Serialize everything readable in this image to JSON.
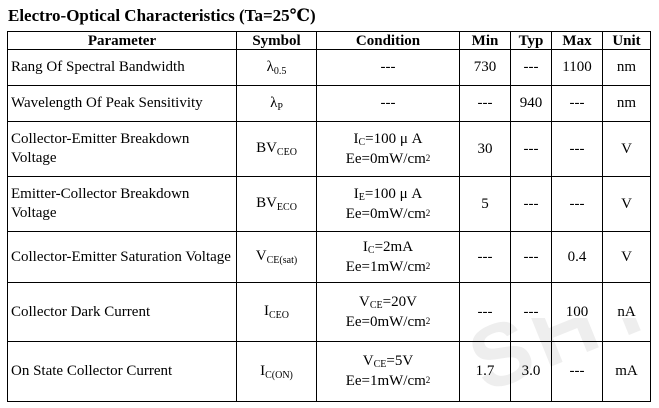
{
  "title": "Electro-Optical Characteristics (Ta=25℃)",
  "watermark": "SHT",
  "headers": {
    "parameter": "Parameter",
    "symbol": "Symbol",
    "condition": "Condition",
    "min": "Min",
    "typ": "Typ",
    "max": "Max",
    "unit": "Unit"
  },
  "rows": [
    {
      "parameter": "Rang Of Spectral Bandwidth",
      "symbol": {
        "main": "λ",
        "sub": "0.5"
      },
      "condition": {
        "line1": "---",
        "line2": ""
      },
      "min": "730",
      "typ": "---",
      "max": "1100",
      "unit": "nm"
    },
    {
      "parameter": "Wavelength Of Peak Sensitivity",
      "symbol": {
        "main": "λ",
        "sub": "P"
      },
      "condition": {
        "line1": "---",
        "line2": ""
      },
      "min": "---",
      "typ": "940",
      "max": "---",
      "unit": "nm"
    },
    {
      "parameter": "Collector-Emitter Breakdown Voltage",
      "symbol": {
        "main": "BV",
        "sub": "CEO"
      },
      "condition": {
        "line1_a": "I",
        "line1_sub": "C",
        "line1_b": "=100 μ A",
        "line2": "Ee=0mW/cm",
        "line2_sup": "2"
      },
      "min": "30",
      "typ": "---",
      "max": "---",
      "unit": "V"
    },
    {
      "parameter": "Emitter-Collector Breakdown Voltage",
      "symbol": {
        "main": "BV",
        "sub": "ECO"
      },
      "condition": {
        "line1_a": "I",
        "line1_sub": "E",
        "line1_b": "=100 μ A",
        "line2": "Ee=0mW/cm",
        "line2_sup": "2"
      },
      "min": "5",
      "typ": "---",
      "max": "---",
      "unit": "V"
    },
    {
      "parameter": "Collector-Emitter Saturation Voltage",
      "symbol": {
        "main": "V",
        "sub": "CE(sat)"
      },
      "condition": {
        "line1_a": "I",
        "line1_sub": "C",
        "line1_b": "=2mA",
        "line2": "Ee=1mW/cm",
        "line2_sup": "2"
      },
      "min": "---",
      "typ": "---",
      "max": "0.4",
      "unit": "V"
    },
    {
      "parameter": "Collector Dark Current",
      "symbol": {
        "main": "I",
        "sub": "CEO"
      },
      "condition": {
        "line1_a": "V",
        "line1_sub": "CE",
        "line1_b": "=20V",
        "line2": "Ee=0mW/cm",
        "line2_sup": "2"
      },
      "min": "---",
      "typ": "---",
      "max": "100",
      "unit": "nA"
    },
    {
      "parameter": "On State Collector Current",
      "symbol": {
        "main": "I",
        "sub": "C(ON)"
      },
      "condition": {
        "line1_a": "V",
        "line1_sub": "CE",
        "line1_b": "=5V",
        "line2": "Ee=1mW/cm",
        "line2_sup": "2"
      },
      "min": "1.7",
      "typ": "3.0",
      "max": "---",
      "unit": "mA"
    }
  ]
}
